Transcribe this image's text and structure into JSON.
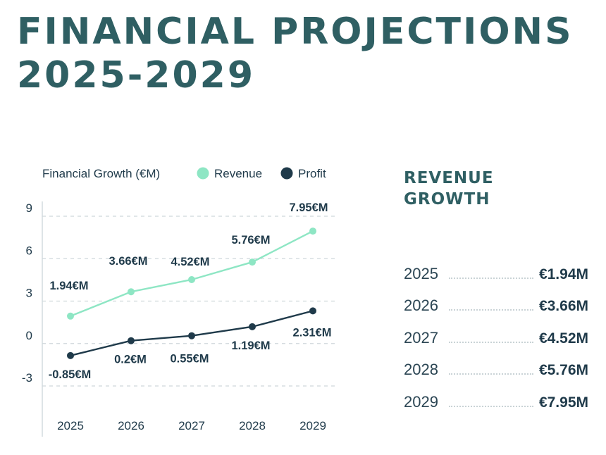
{
  "title_line1": "FINANCIAL PROJECTIONS",
  "title_line2": "2025-2029",
  "colors": {
    "title": "#2f5f63",
    "revenue": "#8ee6c4",
    "profit": "#1f3a4a",
    "grid": "#cfd8db",
    "text": "#1f3a4a"
  },
  "chart_data": {
    "type": "line",
    "title": "Financial Growth (€M)",
    "categories": [
      "2025",
      "2026",
      "2027",
      "2028",
      "2029"
    ],
    "series": [
      {
        "name": "Revenue",
        "values": [
          1.94,
          3.66,
          4.52,
          5.76,
          7.95
        ],
        "labels": [
          "1.94€M",
          "3.66€M",
          "4.52€M",
          "5.76€M",
          "7.95€M"
        ]
      },
      {
        "name": "Profit",
        "values": [
          -0.85,
          0.2,
          0.55,
          1.19,
          2.31
        ],
        "labels": [
          "-0.85€M",
          "0.2€M",
          "0.55€M",
          "1.19€M",
          "2.31€M"
        ]
      }
    ],
    "yticks": [
      9,
      6,
      3,
      0,
      -3
    ],
    "ylim": [
      -3,
      9
    ],
    "grid": true,
    "legend": "top"
  },
  "revenue_growth": {
    "heading_line1": "REVENUE",
    "heading_line2": "GROWTH",
    "rows": [
      {
        "year": "2025",
        "value": "€1.94M"
      },
      {
        "year": "2026",
        "value": "€3.66M"
      },
      {
        "year": "2027",
        "value": "€4.52M"
      },
      {
        "year": "2028",
        "value": "€5.76M"
      },
      {
        "year": "2029",
        "value": "€7.95M"
      }
    ]
  }
}
